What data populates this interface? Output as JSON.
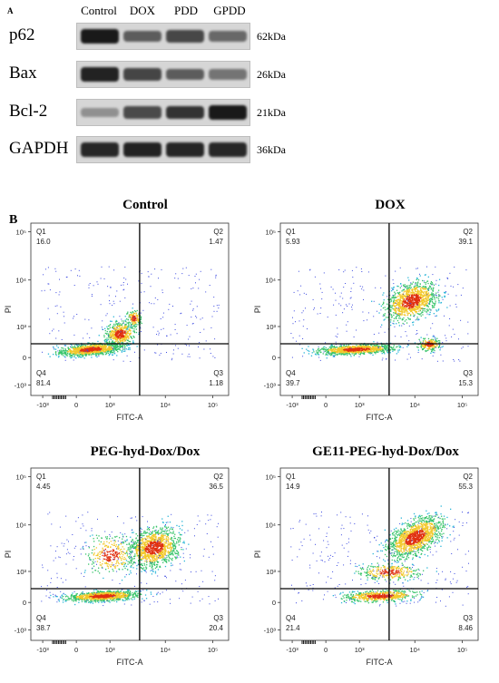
{
  "panel_a": {
    "letter": "A",
    "lanes": [
      "Control",
      "DOX",
      "PDD",
      "GPDD"
    ],
    "rows": [
      {
        "protein": "p62",
        "kda": "62kDa",
        "intensity": [
          1.0,
          0.62,
          0.74,
          0.55
        ]
      },
      {
        "protein": "Bax",
        "kda": "26kDa",
        "intensity": [
          0.95,
          0.75,
          0.62,
          0.48
        ]
      },
      {
        "protein": "Bcl-2",
        "kda": "21kDa",
        "intensity": [
          0.32,
          0.72,
          0.85,
          1.0
        ]
      },
      {
        "protein": "GAPDH",
        "kda": "36kDa",
        "intensity": [
          0.92,
          0.95,
          0.93,
          0.92
        ]
      }
    ]
  },
  "panel_b": {
    "letter": "B",
    "axis": {
      "xlabel": "FITC-A",
      "ylabel": "PI",
      "x_ticks": [
        "-10³",
        "0",
        "10³",
        "10⁴",
        "10⁵"
      ],
      "y_ticks": [
        "10⁵",
        "10⁴",
        "10³",
        "0",
        "-10³"
      ]
    },
    "plots": [
      {
        "title": "Control",
        "q1": "16.0",
        "q2": "1.47",
        "q3": "1.18",
        "q4": "81.4"
      },
      {
        "title": "DOX",
        "q1": "5.93",
        "q2": "39.1",
        "q3": "15.3",
        "q4": "39.7"
      },
      {
        "title": "PEG-hyd-Dox/Dox",
        "q1": "4.45",
        "q2": "36.5",
        "q3": "20.4",
        "q4": "38.7"
      },
      {
        "title": "GE11-PEG-hyd-Dox/Dox",
        "q1": "14.9",
        "q2": "55.3",
        "q3": "8.46",
        "q4": "21.4"
      }
    ],
    "quadrant_labels": [
      "Q1",
      "Q2",
      "Q3",
      "Q4"
    ]
  }
}
